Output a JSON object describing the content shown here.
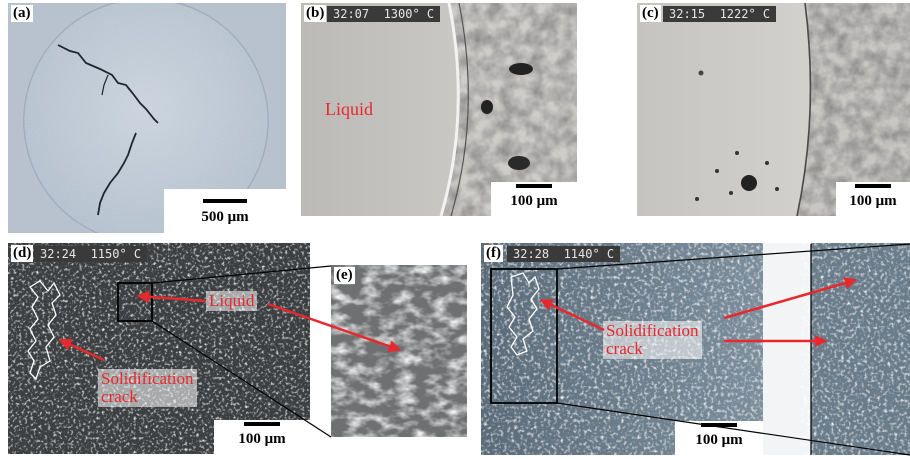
{
  "panels": {
    "a": {
      "label": "(a)",
      "scale": "500 μm"
    },
    "b": {
      "label": "(b)",
      "hud": "32:07  1300° C",
      "annotation": "Liquid",
      "scale": "100 μm"
    },
    "c": {
      "label": "(c)",
      "hud": "32:15  1222° C",
      "scale": "100 μm"
    },
    "d": {
      "label": "(d)",
      "hud": "32:24  1150° C",
      "annotation_liquid": "Liquid",
      "annotation_crack_line1": "Solidification",
      "annotation_crack_line2": "crack",
      "scale": "100 μm"
    },
    "e": {
      "label": "(e)"
    },
    "f": {
      "label": "(f)",
      "hud": "32:28  1140° C",
      "annotation_crack_line1": "Solidification",
      "annotation_crack_line2": "crack",
      "scale": "100 μm"
    }
  },
  "colors": {
    "annotation_red": "#e8282c",
    "hud_bg": "#3a3a3a",
    "label_text": "#000000"
  }
}
